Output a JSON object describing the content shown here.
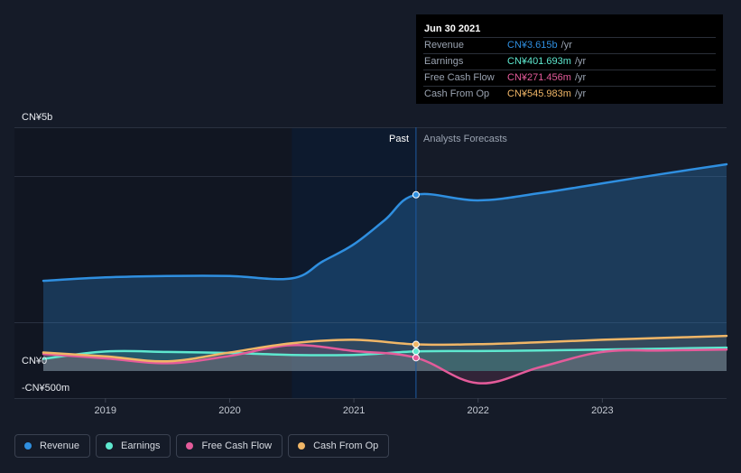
{
  "tooltip": {
    "date": "Jun 30 2021",
    "rows": [
      {
        "name": "Revenue",
        "value": "CN¥3.615b",
        "unit": "/yr",
        "color": "#2f8fe0"
      },
      {
        "name": "Earnings",
        "value": "CN¥401.693m",
        "unit": "/yr",
        "color": "#5ee8cf"
      },
      {
        "name": "Free Cash Flow",
        "value": "CN¥271.456m",
        "unit": "/yr",
        "color": "#e45b9a"
      },
      {
        "name": "Cash From Op",
        "value": "CN¥545.983m",
        "unit": "/yr",
        "color": "#f0b667"
      }
    ]
  },
  "legend": [
    {
      "label": "Revenue",
      "color": "#2f8fe0"
    },
    {
      "label": "Earnings",
      "color": "#5ee8cf"
    },
    {
      "label": "Free Cash Flow",
      "color": "#e45b9a"
    },
    {
      "label": "Cash From Op",
      "color": "#f0b667"
    }
  ],
  "chart_data": {
    "type": "line",
    "title": "",
    "xlabel": "",
    "ylabel": "",
    "unit": "CN¥ millions",
    "ylim": [
      -500,
      5000
    ],
    "xlim": [
      2018.5,
      2024.0
    ],
    "y_tick_labels": [
      {
        "value": 5000,
        "label": "CN¥5b"
      },
      {
        "value": 0,
        "label": "CN¥0"
      },
      {
        "value": -500,
        "label": "-CN¥500m"
      }
    ],
    "x_ticks": [
      {
        "value": 2019,
        "label": "2019"
      },
      {
        "value": 2020,
        "label": "2020"
      },
      {
        "value": 2021,
        "label": "2021"
      },
      {
        "value": 2022,
        "label": "2022"
      },
      {
        "value": 2023,
        "label": "2023"
      }
    ],
    "highlight_start": 2020.5,
    "divider": 2021.5,
    "past_label": "Past",
    "forecast_label": "Analysts Forecasts",
    "series": [
      {
        "name": "Revenue",
        "color": "#2f8fe0",
        "x": [
          2018.5,
          2019.0,
          2019.5,
          2020.0,
          2020.5,
          2020.75,
          2021.0,
          2021.25,
          2021.5,
          2022.0,
          2022.5,
          2023.0,
          2023.5,
          2024.0
        ],
        "values": [
          1850,
          1920,
          1950,
          1950,
          1900,
          2250,
          2600,
          3100,
          3615,
          3500,
          3650,
          3850,
          4050,
          4240
        ]
      },
      {
        "name": "Earnings",
        "color": "#5ee8cf",
        "x": [
          2018.5,
          2019.0,
          2019.5,
          2020.0,
          2020.5,
          2021.0,
          2021.5,
          2022.0,
          2022.5,
          2023.0,
          2023.5,
          2024.0
        ],
        "values": [
          250,
          400,
          390,
          370,
          330,
          330,
          401.693,
          410,
          420,
          440,
          460,
          480
        ]
      },
      {
        "name": "Free Cash Flow",
        "color": "#e45b9a",
        "x": [
          2018.5,
          2019.0,
          2019.5,
          2020.0,
          2020.5,
          2021.0,
          2021.5,
          2022.0,
          2022.5,
          2023.0,
          2023.5,
          2024.0
        ],
        "values": [
          350,
          260,
          160,
          310,
          530,
          410,
          271.456,
          -250,
          80,
          390,
          420,
          440
        ]
      },
      {
        "name": "Cash From Op",
        "color": "#f0b667",
        "x": [
          2018.5,
          2019.0,
          2019.5,
          2020.0,
          2020.5,
          2021.0,
          2021.5,
          2022.0,
          2022.5,
          2023.0,
          2023.5,
          2024.0
        ],
        "values": [
          380,
          300,
          200,
          380,
          570,
          640,
          545.983,
          550,
          590,
          640,
          680,
          720
        ]
      }
    ]
  }
}
